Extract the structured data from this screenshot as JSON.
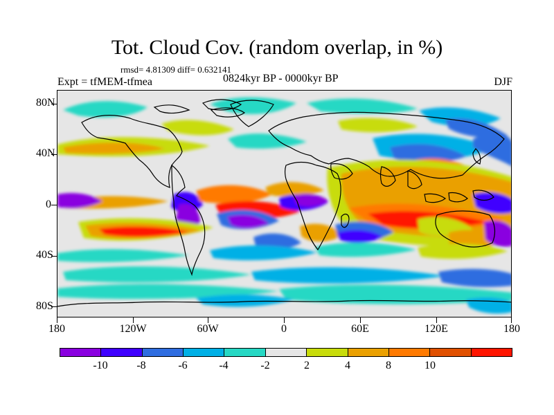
{
  "title": "Tot. Cloud Cov. (random overlap, in %)",
  "stats_text": "rmsd= 4.81309 diff= 0.632141",
  "experiment_label": "Expt = tfMEM-tfmea",
  "period_label": "0824kyr BP - 0000kyr BP",
  "season_label": "DJF",
  "y_ticks": [
    "80N",
    "40N",
    "0",
    "40S",
    "80S"
  ],
  "x_ticks": [
    "180",
    "120W",
    "60W",
    "0",
    "60E",
    "120E",
    "180"
  ],
  "colorbar": {
    "labels": [
      "-10",
      "-8",
      "-6",
      "-4",
      "-2",
      "2",
      "4",
      "8",
      "10"
    ],
    "colors": [
      "#8a00e0",
      "#3f00ff",
      "#2f6de0",
      "#00b0e6",
      "#26d8c4",
      "#e6e6e6",
      "#c8dc0a",
      "#eaa000",
      "#ff7a00",
      "#e05000",
      "#ff1500"
    ]
  }
}
